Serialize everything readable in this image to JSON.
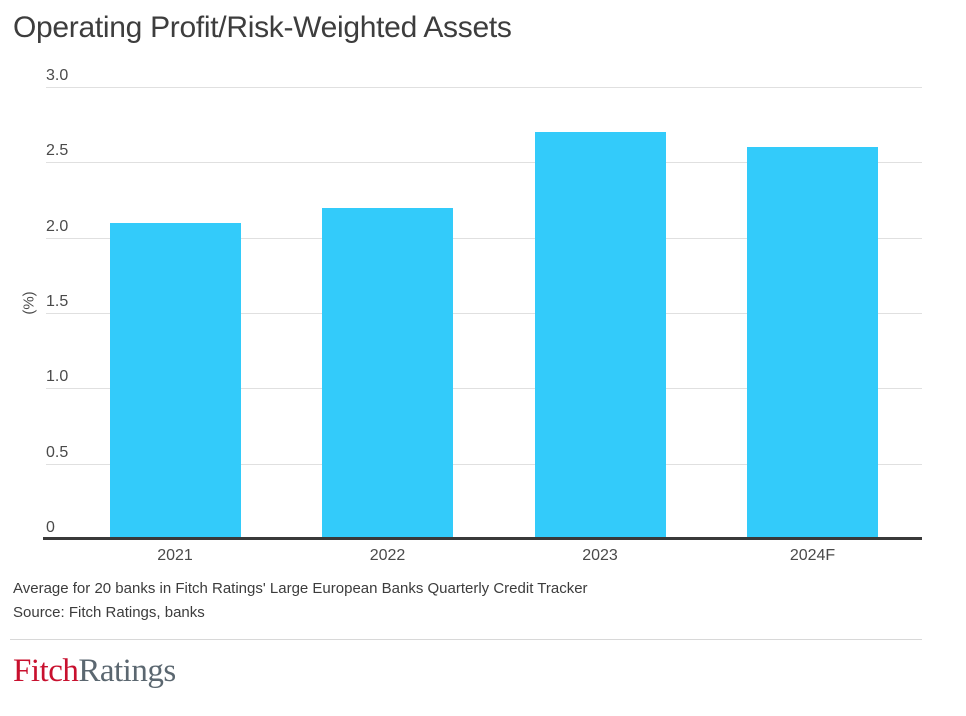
{
  "title": "Operating Profit/Risk-Weighted Assets",
  "chart_data": {
    "type": "bar",
    "categories": [
      "2021",
      "2022",
      "2023",
      "2024F"
    ],
    "values": [
      2.1,
      2.2,
      2.7,
      2.6
    ],
    "title": "Operating Profit/Risk-Weighted Assets",
    "xlabel": "",
    "ylabel": "(%)",
    "ylim": [
      0,
      3.0
    ],
    "yticks": [
      {
        "value": 3.0,
        "label": "3.0"
      },
      {
        "value": 2.5,
        "label": "2.5"
      },
      {
        "value": 2.0,
        "label": "2.0"
      },
      {
        "value": 1.5,
        "label": "1.5"
      },
      {
        "value": 1.0,
        "label": "1.0"
      },
      {
        "value": 0.5,
        "label": "0.5"
      },
      {
        "value": 0,
        "label": "0"
      }
    ],
    "grid": "horizontal",
    "legend": "none",
    "bar_color": "#33cbfa",
    "axis_color": "#393939",
    "gridline_color": "#e0e0e0"
  },
  "footer": {
    "note": "Average for 20 banks in Fitch Ratings' Large European Banks Quarterly Credit Tracker",
    "source": "Source: Fitch Ratings, banks"
  },
  "logo": {
    "fitch": "Fitch",
    "ratings": "Ratings",
    "fitch_color": "#c8102e",
    "ratings_color": "#5b6770"
  }
}
